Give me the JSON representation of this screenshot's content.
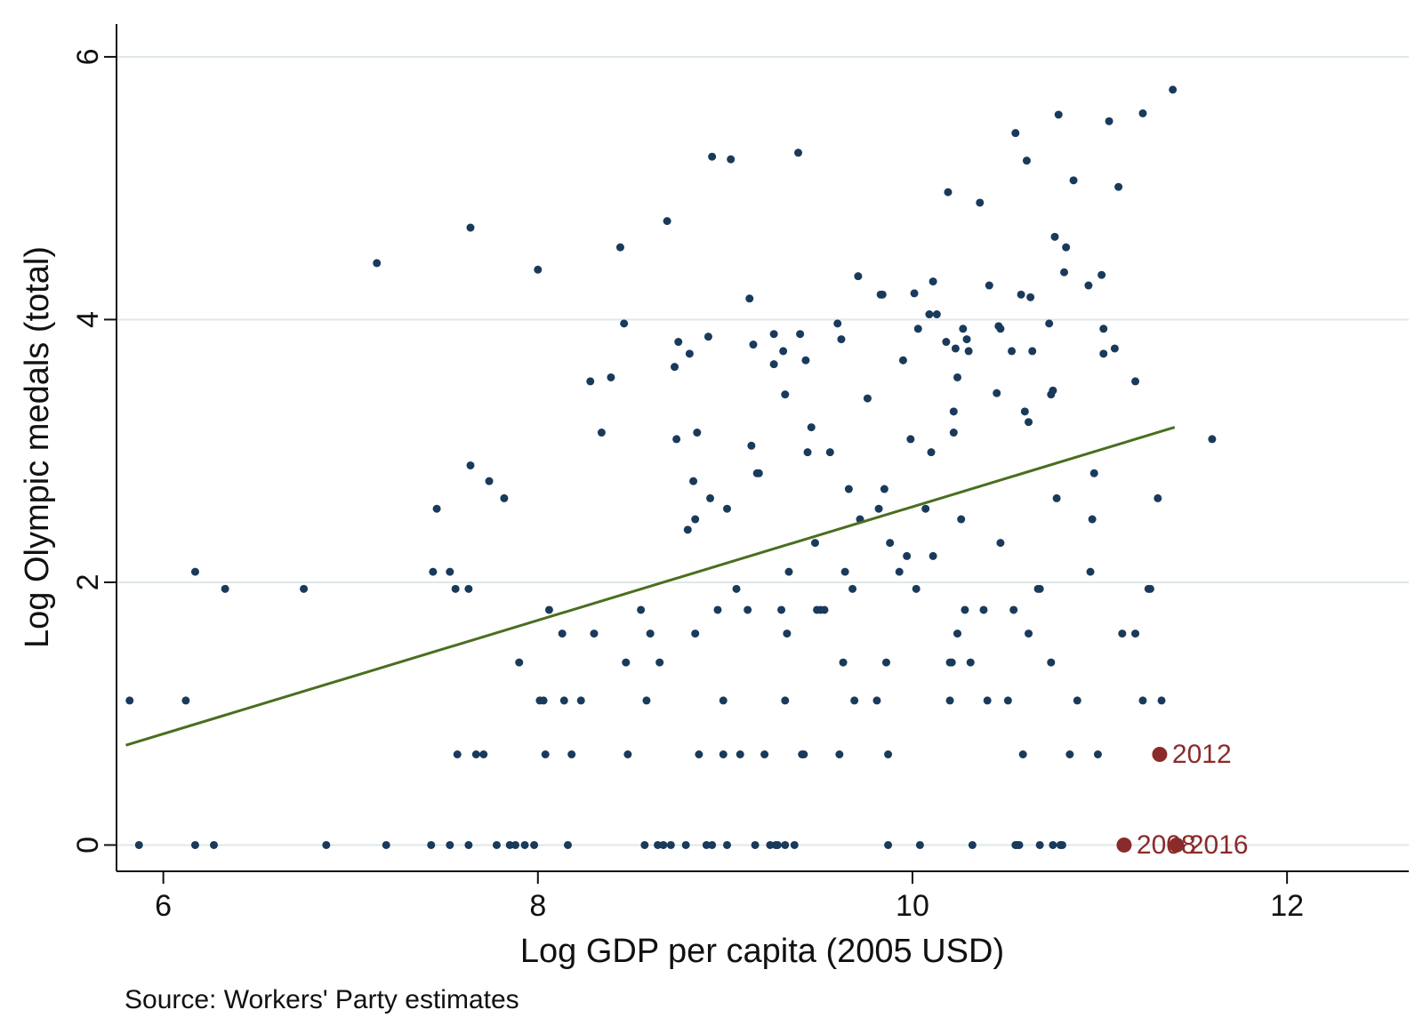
{
  "chart_data": {
    "type": "scatter",
    "title": "",
    "xlabel": "Log GDP per capita (2005 USD)",
    "ylabel": "Log Olympic medals (total)",
    "note": "Source: Workers' Party estimates",
    "xlim": [
      5.75,
      12.65
    ],
    "ylim": [
      -0.2,
      6.25
    ],
    "xticks": [
      6,
      8,
      10,
      12
    ],
    "yticks": [
      0,
      2,
      4,
      6
    ],
    "grid": "horizontal",
    "colors": {
      "points": "#1a3a5c",
      "fit": "#4a6e1f",
      "highlight": "#8b2a2a",
      "grid": "#dfe8e8"
    },
    "points": [
      [
        5.82,
        1.1
      ],
      [
        5.87,
        0.0
      ],
      [
        6.12,
        1.1
      ],
      [
        6.17,
        2.08
      ],
      [
        6.17,
        0.0
      ],
      [
        6.27,
        0.0
      ],
      [
        6.33,
        1.95
      ],
      [
        6.75,
        1.95
      ],
      [
        6.87,
        0.0
      ],
      [
        7.14,
        4.43
      ],
      [
        7.19,
        0.0
      ],
      [
        7.43,
        0.0
      ],
      [
        7.44,
        2.08
      ],
      [
        7.46,
        2.56
      ],
      [
        7.53,
        0.0
      ],
      [
        7.53,
        2.08
      ],
      [
        7.56,
        1.95
      ],
      [
        7.57,
        0.69
      ],
      [
        7.63,
        0.0
      ],
      [
        7.63,
        1.95
      ],
      [
        7.64,
        4.7
      ],
      [
        7.64,
        2.89
      ],
      [
        7.67,
        0.69
      ],
      [
        7.71,
        0.69
      ],
      [
        7.74,
        2.77
      ],
      [
        7.78,
        0.0
      ],
      [
        7.82,
        2.64
      ],
      [
        7.85,
        0.0
      ],
      [
        7.88,
        0.0
      ],
      [
        7.9,
        1.39
      ],
      [
        7.93,
        0.0
      ],
      [
        7.98,
        0.0
      ],
      [
        8.0,
        4.38
      ],
      [
        8.01,
        1.1
      ],
      [
        8.03,
        1.1
      ],
      [
        8.04,
        0.69
      ],
      [
        8.06,
        1.79
      ],
      [
        8.13,
        1.61
      ],
      [
        8.14,
        1.1
      ],
      [
        8.16,
        0.0
      ],
      [
        8.18,
        0.69
      ],
      [
        8.23,
        1.1
      ],
      [
        8.28,
        3.53
      ],
      [
        8.3,
        1.61
      ],
      [
        8.34,
        3.14
      ],
      [
        8.39,
        3.56
      ],
      [
        8.44,
        4.55
      ],
      [
        8.46,
        3.97
      ],
      [
        8.47,
        1.39
      ],
      [
        8.48,
        0.69
      ],
      [
        8.55,
        1.79
      ],
      [
        8.57,
        0.0
      ],
      [
        8.58,
        1.1
      ],
      [
        8.6,
        1.61
      ],
      [
        8.64,
        0.0
      ],
      [
        8.65,
        1.39
      ],
      [
        8.67,
        0.0
      ],
      [
        8.69,
        4.75
      ],
      [
        8.71,
        0.0
      ],
      [
        8.73,
        3.64
      ],
      [
        8.74,
        3.09
      ],
      [
        8.75,
        3.83
      ],
      [
        8.79,
        0.0
      ],
      [
        8.8,
        2.4
      ],
      [
        8.81,
        3.74
      ],
      [
        8.83,
        2.77
      ],
      [
        8.84,
        2.48
      ],
      [
        8.84,
        1.61
      ],
      [
        8.85,
        3.14
      ],
      [
        8.86,
        0.69
      ],
      [
        8.9,
        0.0
      ],
      [
        8.91,
        3.87
      ],
      [
        8.92,
        2.64
      ],
      [
        8.93,
        0.0
      ],
      [
        8.93,
        5.24
      ],
      [
        8.96,
        1.79
      ],
      [
        8.99,
        0.69
      ],
      [
        8.99,
        1.1
      ],
      [
        9.01,
        0.0
      ],
      [
        9.01,
        2.56
      ],
      [
        9.03,
        5.22
      ],
      [
        9.06,
        1.95
      ],
      [
        9.08,
        0.69
      ],
      [
        9.12,
        1.79
      ],
      [
        9.13,
        4.16
      ],
      [
        9.14,
        3.04
      ],
      [
        9.15,
        3.81
      ],
      [
        9.16,
        0.0
      ],
      [
        9.17,
        2.83
      ],
      [
        9.18,
        2.83
      ],
      [
        9.21,
        0.69
      ],
      [
        9.24,
        0.0
      ],
      [
        9.26,
        3.66
      ],
      [
        9.26,
        3.89
      ],
      [
        9.27,
        0.0
      ],
      [
        9.28,
        0.0
      ],
      [
        9.3,
        1.79
      ],
      [
        9.31,
        3.76
      ],
      [
        9.32,
        3.43
      ],
      [
        9.32,
        0.0
      ],
      [
        9.32,
        1.1
      ],
      [
        9.33,
        1.61
      ],
      [
        9.34,
        2.08
      ],
      [
        9.37,
        0.0
      ],
      [
        9.39,
        5.27
      ],
      [
        9.4,
        3.89
      ],
      [
        9.41,
        0.69
      ],
      [
        9.42,
        0.69
      ],
      [
        9.43,
        3.69
      ],
      [
        9.44,
        2.99
      ],
      [
        9.46,
        3.18
      ],
      [
        9.48,
        2.3
      ],
      [
        9.49,
        1.79
      ],
      [
        9.51,
        1.79
      ],
      [
        9.53,
        1.79
      ],
      [
        9.56,
        2.99
      ],
      [
        9.6,
        3.97
      ],
      [
        9.61,
        0.69
      ],
      [
        9.62,
        3.85
      ],
      [
        9.63,
        1.39
      ],
      [
        9.64,
        2.08
      ],
      [
        9.66,
        2.71
      ],
      [
        9.68,
        1.95
      ],
      [
        9.69,
        1.1
      ],
      [
        9.71,
        4.33
      ],
      [
        9.72,
        2.48
      ],
      [
        9.76,
        3.4
      ],
      [
        9.81,
        1.1
      ],
      [
        9.82,
        2.56
      ],
      [
        9.83,
        4.19
      ],
      [
        9.84,
        4.19
      ],
      [
        9.85,
        2.71
      ],
      [
        9.86,
        1.39
      ],
      [
        9.87,
        0.0
      ],
      [
        9.87,
        0.69
      ],
      [
        9.88,
        2.3
      ],
      [
        9.93,
        2.08
      ],
      [
        9.95,
        3.69
      ],
      [
        9.97,
        2.2
      ],
      [
        9.99,
        3.09
      ],
      [
        10.01,
        4.2
      ],
      [
        10.02,
        1.95
      ],
      [
        10.03,
        3.93
      ],
      [
        10.04,
        0.0
      ],
      [
        10.07,
        2.56
      ],
      [
        10.09,
        4.04
      ],
      [
        10.1,
        2.99
      ],
      [
        10.11,
        2.2
      ],
      [
        10.11,
        4.29
      ],
      [
        10.13,
        4.04
      ],
      [
        10.18,
        3.83
      ],
      [
        10.19,
        4.97
      ],
      [
        10.2,
        1.1
      ],
      [
        10.2,
        1.39
      ],
      [
        10.21,
        1.39
      ],
      [
        10.22,
        3.14
      ],
      [
        10.22,
        3.3
      ],
      [
        10.23,
        3.78
      ],
      [
        10.24,
        3.56
      ],
      [
        10.24,
        1.61
      ],
      [
        10.26,
        2.48
      ],
      [
        10.27,
        3.93
      ],
      [
        10.28,
        1.79
      ],
      [
        10.29,
        3.85
      ],
      [
        10.3,
        3.76
      ],
      [
        10.31,
        1.39
      ],
      [
        10.32,
        0.0
      ],
      [
        10.36,
        4.89
      ],
      [
        10.38,
        1.79
      ],
      [
        10.4,
        1.1
      ],
      [
        10.41,
        4.26
      ],
      [
        10.45,
        3.44
      ],
      [
        10.46,
        3.95
      ],
      [
        10.47,
        3.93
      ],
      [
        10.47,
        2.3
      ],
      [
        10.51,
        1.1
      ],
      [
        10.53,
        3.76
      ],
      [
        10.54,
        1.79
      ],
      [
        10.55,
        5.42
      ],
      [
        10.55,
        0.0
      ],
      [
        10.56,
        0.0
      ],
      [
        10.57,
        0.0
      ],
      [
        10.58,
        4.19
      ],
      [
        10.59,
        0.69
      ],
      [
        10.6,
        3.3
      ],
      [
        10.61,
        5.21
      ],
      [
        10.62,
        3.22
      ],
      [
        10.62,
        1.61
      ],
      [
        10.63,
        4.17
      ],
      [
        10.64,
        3.76
      ],
      [
        10.67,
        1.95
      ],
      [
        10.68,
        1.95
      ],
      [
        10.68,
        0.0
      ],
      [
        10.73,
        3.97
      ],
      [
        10.74,
        3.43
      ],
      [
        10.74,
        1.39
      ],
      [
        10.75,
        3.46
      ],
      [
        10.75,
        0.0
      ],
      [
        10.76,
        4.63
      ],
      [
        10.77,
        2.64
      ],
      [
        10.78,
        5.56
      ],
      [
        10.79,
        0.0
      ],
      [
        10.8,
        0.0
      ],
      [
        10.81,
        4.36
      ],
      [
        10.82,
        4.55
      ],
      [
        10.84,
        0.69
      ],
      [
        10.86,
        5.06
      ],
      [
        10.88,
        1.1
      ],
      [
        10.94,
        4.26
      ],
      [
        10.95,
        2.08
      ],
      [
        10.96,
        2.48
      ],
      [
        10.97,
        2.83
      ],
      [
        10.99,
        0.69
      ],
      [
        11.01,
        4.34
      ],
      [
        11.02,
        3.74
      ],
      [
        11.02,
        3.93
      ],
      [
        11.05,
        5.51
      ],
      [
        11.08,
        3.78
      ],
      [
        11.1,
        5.01
      ],
      [
        11.12,
        1.61
      ],
      [
        11.19,
        3.53
      ],
      [
        11.19,
        1.61
      ],
      [
        11.23,
        5.57
      ],
      [
        11.23,
        1.1
      ],
      [
        11.26,
        1.95
      ],
      [
        11.27,
        1.95
      ],
      [
        11.31,
        2.64
      ],
      [
        11.33,
        1.1
      ],
      [
        11.39,
        5.75
      ],
      [
        11.6,
        3.09
      ]
    ],
    "fit_line": [
      [
        5.8,
        0.76
      ],
      [
        11.4,
        3.18
      ]
    ],
    "highlights": [
      {
        "label": "2012",
        "x": 11.32,
        "y": 0.69
      },
      {
        "label": "2008",
        "x": 11.13,
        "y": 0.0
      },
      {
        "label": "2016",
        "x": 11.41,
        "y": 0.0
      }
    ]
  }
}
